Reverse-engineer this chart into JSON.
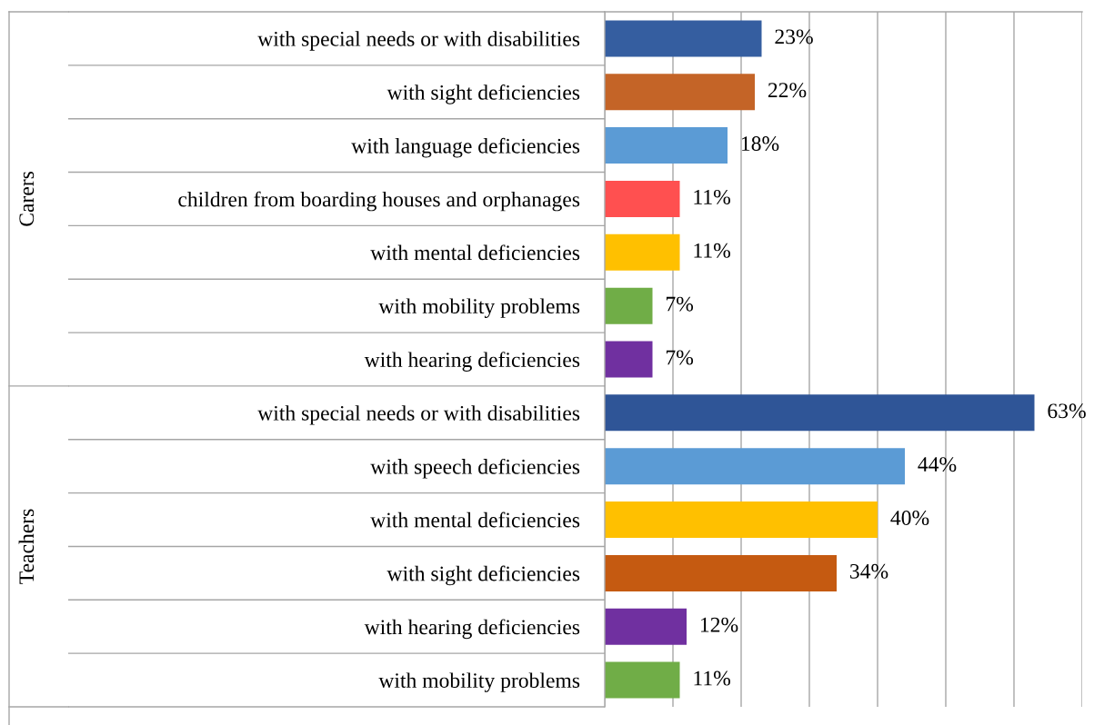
{
  "chart_data": [
    {
      "type": "bar",
      "orientation": "horizontal",
      "ylabel": "Carers",
      "categories": [
        "with special needs or with disabilities",
        "with sight deficiencies",
        "with language deficiencies",
        "children from boarding houses and orphanages",
        "with mental deficiencies",
        "with mobility problems",
        "with hearing deficiencies"
      ],
      "values": [
        23,
        22,
        18,
        11,
        11,
        7,
        7
      ],
      "colors": [
        "#355ea0",
        "#c46427",
        "#5b9bd5",
        "#ff5050",
        "#ffc000",
        "#70ad47",
        "#7030a0"
      ],
      "value_labels": [
        "23%",
        "22%",
        "18%",
        "11%",
        "11%",
        "7%",
        "7%"
      ],
      "xlim": [
        0,
        70
      ],
      "xticks": [
        {
          "value": 0,
          "label": null
        },
        {
          "value": 10,
          "label": null
        },
        {
          "value": 20,
          "label": null
        },
        {
          "value": 30,
          "label": null
        },
        {
          "value": 40,
          "label": null
        },
        {
          "value": 50,
          "label": null
        },
        {
          "value": 60,
          "label": null
        },
        {
          "value": 70,
          "label": null
        }
      ],
      "grid": "x",
      "tick_labels": "y"
    },
    {
      "type": "bar",
      "orientation": "horizontal",
      "ylabel": "Teachers",
      "categories": [
        "with special needs or with disabilities",
        "with speech deficiencies",
        "with mental deficiencies",
        "with sight deficiencies",
        "with hearing deficiencies",
        "with mobility problems"
      ],
      "values": [
        63,
        44,
        40,
        34,
        12,
        11
      ],
      "colors": [
        "#2f5597",
        "#5b9bd5",
        "#ffc000",
        "#c55a11",
        "#7030a0",
        "#70ad47"
      ],
      "value_labels": [
        "63%",
        "44%",
        "40%",
        "34%",
        "12%",
        "11%"
      ],
      "xlim": [
        0,
        70
      ],
      "xticks": [
        {
          "value": 0,
          "label": null
        },
        {
          "value": 10,
          "label": null
        },
        {
          "value": 20,
          "label": null
        },
        {
          "value": 30,
          "label": null
        },
        {
          "value": 40,
          "label": null
        },
        {
          "value": 50,
          "label": null
        },
        {
          "value": 60,
          "label": null
        },
        {
          "value": 70,
          "label": null
        }
      ],
      "grid": "x",
      "tick_labels": "y"
    }
  ]
}
